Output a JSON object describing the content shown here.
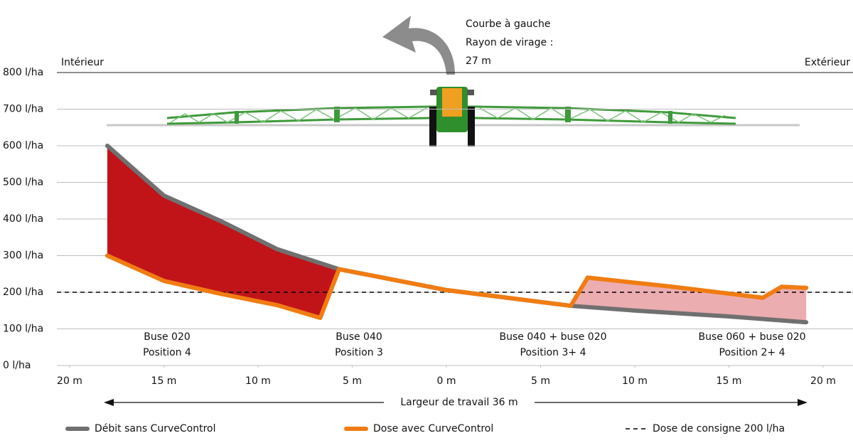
{
  "chart_data": {
    "type": "line",
    "title": [
      "Courbe à gauche",
      "Rayon de virage :",
      "27 m"
    ],
    "left_label": "Intérieur",
    "right_label": "Extérieur",
    "xlabel": "Largeur de travail 36 m",
    "xlim": [
      -20,
      20
    ],
    "xticks": [
      {
        "value": -20,
        "label": "20 m"
      },
      {
        "value": -15,
        "label": "15 m"
      },
      {
        "value": -10,
        "label": "10 m"
      },
      {
        "value": -5,
        "label": "5 m"
      },
      {
        "value": 0,
        "label": "0 m"
      },
      {
        "value": 5,
        "label": "5 m"
      },
      {
        "value": 10,
        "label": "10 m"
      },
      {
        "value": 15,
        "label": "15 m"
      },
      {
        "value": 20,
        "label": "20 m"
      }
    ],
    "ylim": [
      0,
      800
    ],
    "yticks": [
      {
        "value": 0,
        "label": "0 l/ha"
      },
      {
        "value": 100,
        "label": "100 l/ha"
      },
      {
        "value": 200,
        "label": "200 l/ha"
      },
      {
        "value": 300,
        "label": "300 l/ha"
      },
      {
        "value": 400,
        "label": "400 l/ha"
      },
      {
        "value": 500,
        "label": "500 l/ha"
      },
      {
        "value": 600,
        "label": "600 l/ha"
      },
      {
        "value": 700,
        "label": "700 l/ha"
      },
      {
        "value": 800,
        "label": "800 l/ha"
      }
    ],
    "grid": true,
    "series": [
      {
        "name": "Débit sans CurveControl",
        "color": "#707070",
        "x": [
          -18,
          -15,
          -12,
          -9,
          -5.7,
          0,
          6.6,
          10,
          15,
          19.1
        ],
        "values": [
          600,
          464,
          395,
          318,
          263,
          206,
          163,
          150,
          134,
          118
        ]
      },
      {
        "name": "Dose avec CurveControl",
        "color": "#f07c12",
        "x": [
          -18,
          -15,
          -12,
          -9,
          -6.7,
          -5.7,
          0,
          6.6,
          7.5,
          12,
          16.8,
          17.8,
          19.1
        ],
        "values": [
          300,
          231,
          196,
          165,
          130,
          263,
          206,
          163,
          240,
          215,
          185,
          215,
          212
        ]
      }
    ],
    "fill_colors": [
      "#c01419",
      "#ebadb0"
    ],
    "reference": {
      "name": "Dose de consigne 200 l/ha",
      "value": 200,
      "color": "#000000"
    },
    "annotations": [
      [
        "Buse 020",
        "Position 4"
      ],
      [
        "Buse 040",
        "Position 3"
      ],
      [
        "Buse 040 + buse 020",
        "Position 3+ 4"
      ],
      [
        "Buse 060 + buse 020",
        "Position 2+ 4"
      ]
    ]
  }
}
